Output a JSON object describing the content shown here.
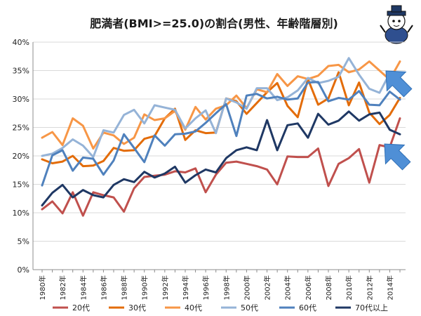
{
  "chart_data": {
    "type": "line",
    "title": "肥満者(BMI>=25.0)の割合(男性、年齢階層別)",
    "y_tick_labels": [
      "0%",
      "5%",
      "10%",
      "15%",
      "20%",
      "25%",
      "30%",
      "35%",
      "40%"
    ],
    "ylim": [
      0,
      40
    ],
    "y_unit": "%",
    "grid": true,
    "legend_position": "bottom",
    "x_tick_labels": [
      "1980年",
      "1982年",
      "1984年",
      "1986年",
      "1988年",
      "1990年",
      "1992年",
      "1994年",
      "1996年",
      "1998年",
      "2000年",
      "2002年",
      "2004年",
      "2006年",
      "2008年",
      "2010年",
      "2012年",
      "2014年"
    ],
    "x": [
      1980,
      1981,
      1982,
      1983,
      1984,
      1985,
      1986,
      1987,
      1988,
      1989,
      1990,
      1991,
      1992,
      1993,
      1994,
      1995,
      1996,
      1997,
      1998,
      1999,
      2000,
      2001,
      2002,
      2003,
      2004,
      2005,
      2006,
      2007,
      2008,
      2009,
      2010,
      2011,
      2012,
      2013,
      2014,
      2015
    ],
    "series": [
      {
        "name": "20代",
        "color": "#c0504d",
        "values": [
          10.6,
          12.0,
          9.9,
          13.6,
          9.5,
          13.6,
          13.1,
          12.7,
          10.2,
          14.3,
          16.3,
          16.5,
          16.7,
          17.3,
          17.1,
          17.8,
          13.6,
          16.7,
          18.8,
          19.0,
          18.6,
          18.2,
          17.6,
          15.0,
          19.9,
          19.8,
          19.8,
          21.3,
          14.7,
          18.6,
          19.6,
          21.2,
          15.3,
          21.9,
          21.5,
          26.6
        ]
      },
      {
        "name": "30代",
        "color": "#e36c09",
        "values": [
          19.4,
          18.7,
          19.0,
          20.0,
          18.2,
          18.3,
          19.1,
          21.4,
          20.9,
          21.0,
          23.0,
          23.5,
          26.6,
          28.3,
          22.8,
          24.5,
          24.0,
          24.1,
          30.1,
          29.6,
          27.4,
          29.3,
          31.2,
          32.8,
          28.8,
          26.8,
          33.5,
          29.0,
          30.1,
          34.7,
          28.9,
          32.9,
          27.6,
          25.6,
          27.2,
          30.2
        ]
      },
      {
        "name": "40代",
        "color": "#f79646",
        "values": [
          23.2,
          24.2,
          21.9,
          26.6,
          25.3,
          21.3,
          24.1,
          23.6,
          22.1,
          23.2,
          27.3,
          26.3,
          26.6,
          27.9,
          24.6,
          28.6,
          26.4,
          28.3,
          28.9,
          30.6,
          28.4,
          31.7,
          31.2,
          34.4,
          32.3,
          34.0,
          33.5,
          34.1,
          35.8,
          36.0,
          34.7,
          35.2,
          36.6,
          35.0,
          33.4,
          36.6
        ]
      },
      {
        "name": "50代",
        "color": "#95b3d7",
        "values": [
          20.0,
          20.4,
          21.4,
          22.9,
          21.8,
          19.8,
          24.5,
          24.1,
          27.2,
          28.1,
          25.7,
          28.9,
          28.5,
          28.1,
          24.8,
          26.6,
          28.0,
          24.0,
          30.1,
          29.4,
          28.3,
          31.9,
          31.9,
          29.8,
          30.3,
          31.5,
          33.7,
          32.8,
          33.2,
          33.9,
          37.2,
          34.3,
          31.8,
          31.1,
          34.5,
          33.2
        ]
      },
      {
        "name": "60代",
        "color": "#4f81bd",
        "values": [
          14.8,
          20.1,
          21.0,
          17.4,
          19.7,
          19.5,
          16.7,
          19.2,
          23.8,
          21.4,
          18.9,
          23.6,
          21.8,
          23.8,
          23.9,
          24.3,
          25.8,
          27.5,
          29.1,
          23.5,
          30.6,
          30.9,
          30.1,
          30.4,
          29.9,
          30.1,
          32.9,
          33.0,
          29.6,
          30.2,
          29.9,
          31.4,
          29.0,
          28.9,
          31.3,
          29.9
        ]
      },
      {
        "name": "70代以上",
        "color": "#1f3864",
        "values": [
          11.3,
          13.5,
          14.9,
          12.7,
          14.0,
          13.1,
          12.7,
          14.9,
          15.9,
          15.4,
          17.2,
          16.2,
          16.9,
          18.1,
          15.3,
          16.6,
          17.6,
          17.1,
          19.6,
          21.0,
          21.5,
          21.0,
          26.3,
          21.0,
          25.4,
          25.7,
          23.2,
          27.4,
          25.5,
          26.2,
          27.8,
          26.2,
          27.3,
          27.6,
          24.6,
          23.8
        ]
      }
    ]
  }
}
